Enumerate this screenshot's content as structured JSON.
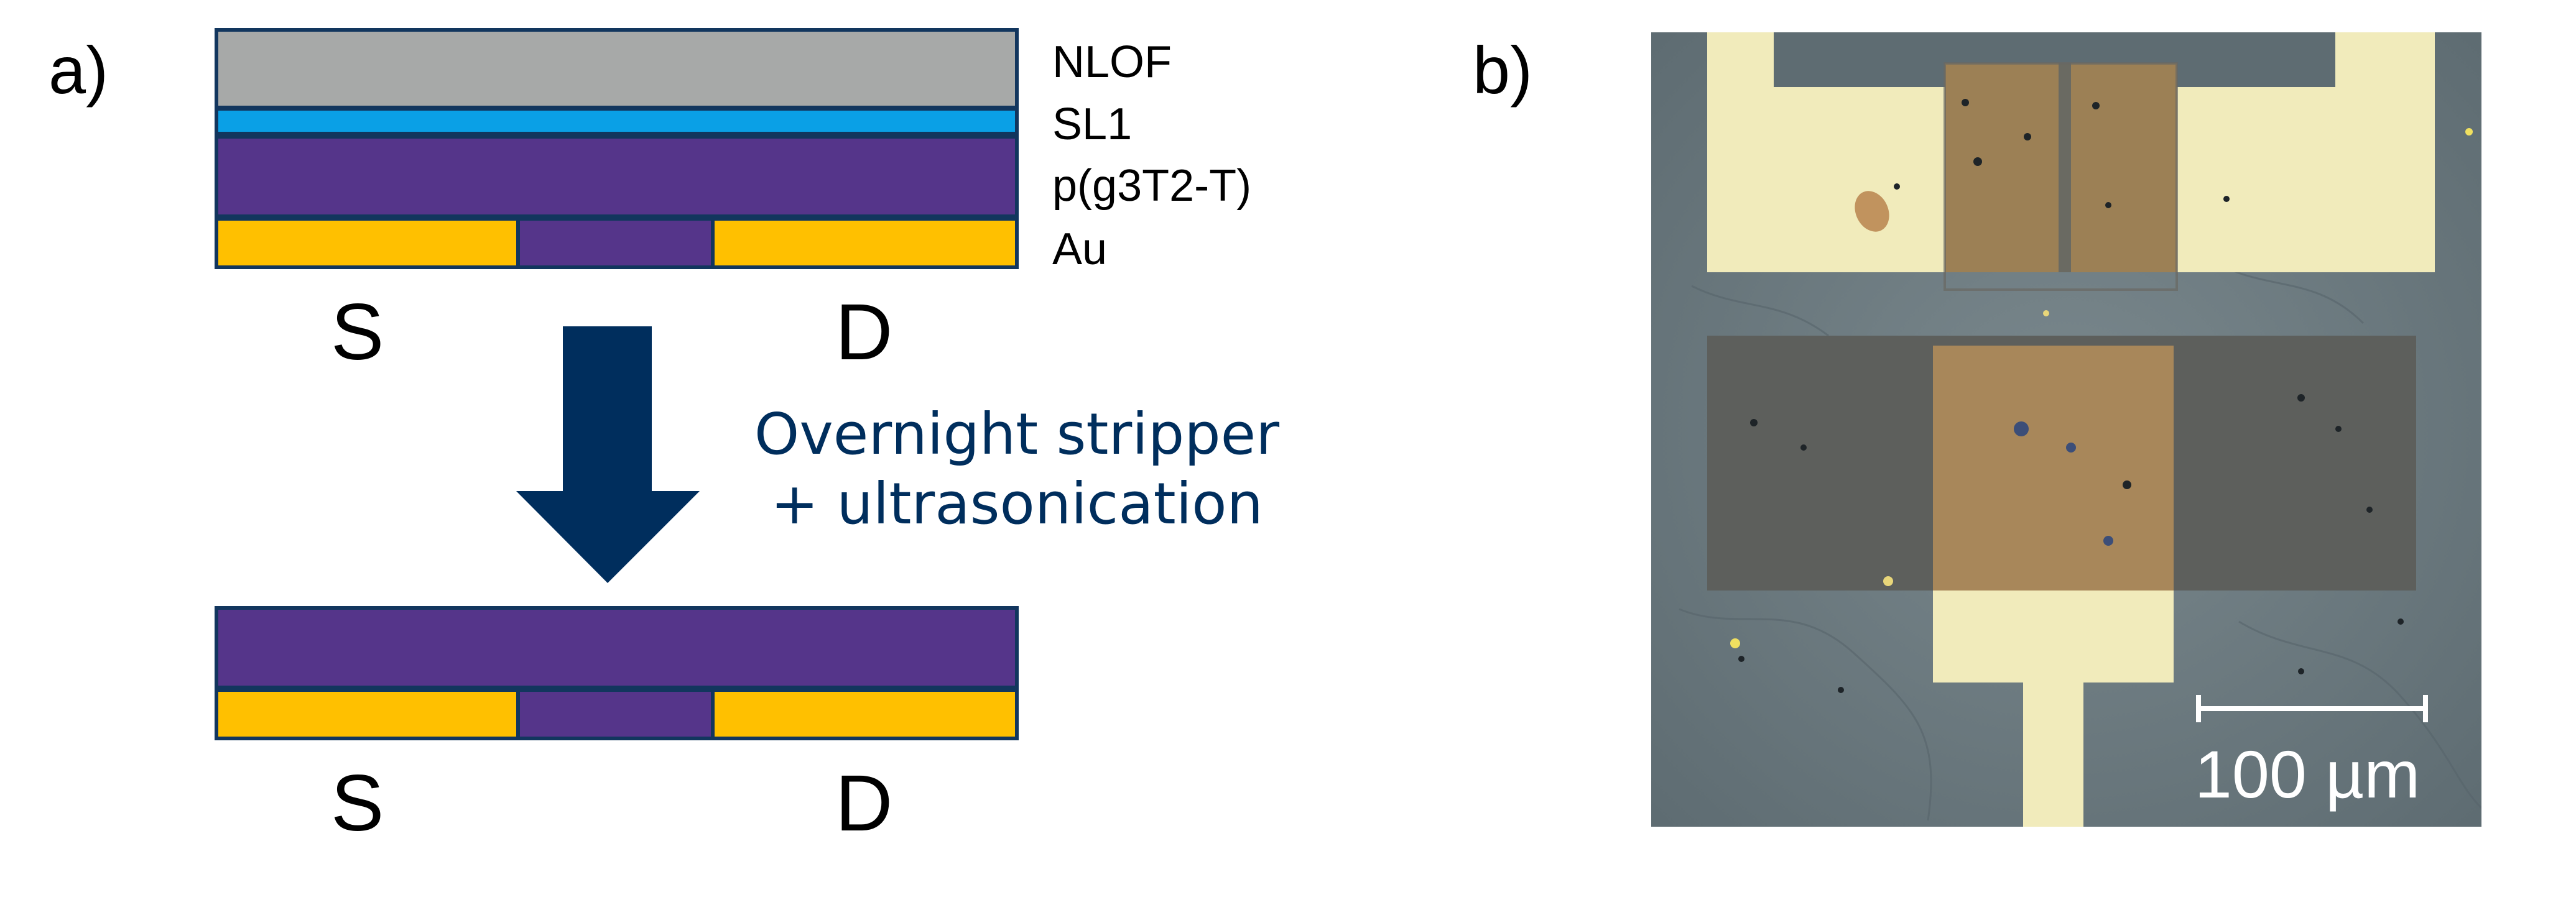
{
  "panels": {
    "a_label": "a)",
    "b_label": "b)"
  },
  "stack_before": {
    "layers": [
      {
        "name": "NLOF",
        "color": "#A7A9A8"
      },
      {
        "name": "SL1",
        "color": "#0AA0E6"
      },
      {
        "name": "p(g3T2-T)",
        "color": "#55358A"
      },
      {
        "name": "Au",
        "color": "#FFC000"
      }
    ],
    "source_label": "S",
    "drain_label": "D"
  },
  "process": {
    "line1": "Overnight stripper",
    "line2": "+ ultrasonication",
    "color": "#002E5D"
  },
  "stack_after": {
    "source_label": "S",
    "drain_label": "D"
  },
  "micrograph": {
    "scale_bar_label": "100 µm"
  },
  "colors": {
    "outline": "#12365E",
    "gold": "#FFC000",
    "polymer": "#55358A",
    "arrow": "#002E5D",
    "substrate": "#6F7E84",
    "pad_light": "#F1EBBB",
    "pad_coated": "#9C8055"
  }
}
